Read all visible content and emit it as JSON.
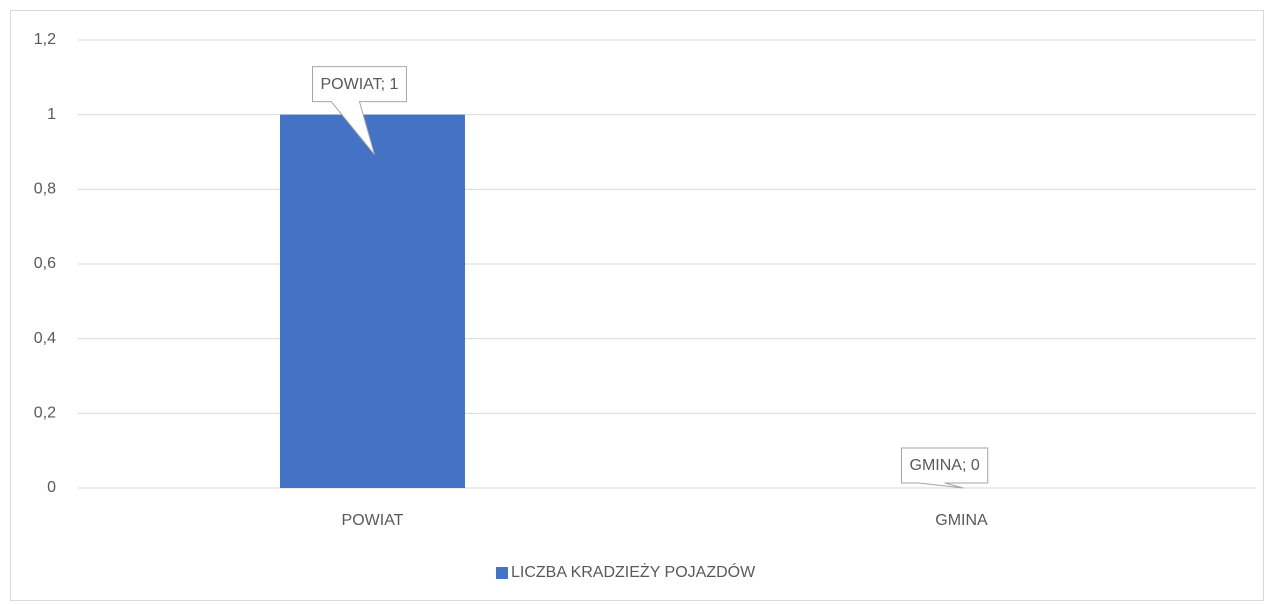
{
  "chart_data": {
    "type": "bar",
    "categories": [
      "POWIAT",
      "GMINA"
    ],
    "series": [
      {
        "name": "LICZBA KRADZIEŻY POJAZDÓW",
        "color": "#4472c4",
        "values": [
          1,
          0
        ],
        "value_labels": [
          "POWIAT; 1",
          "GMINA; 0"
        ]
      }
    ],
    "ylim": [
      0,
      1.2
    ],
    "yticks": [
      0,
      {
        "value": 0.2,
        "label": "0,2"
      },
      {
        "value": 0.4,
        "label": "0,4"
      },
      {
        "value": 0.6,
        "label": "0,6"
      },
      {
        "value": 0.8,
        "label": "0,8"
      },
      1,
      {
        "value": 1.2,
        "label": "1,2"
      }
    ],
    "grid": true,
    "legend": "bottom"
  }
}
